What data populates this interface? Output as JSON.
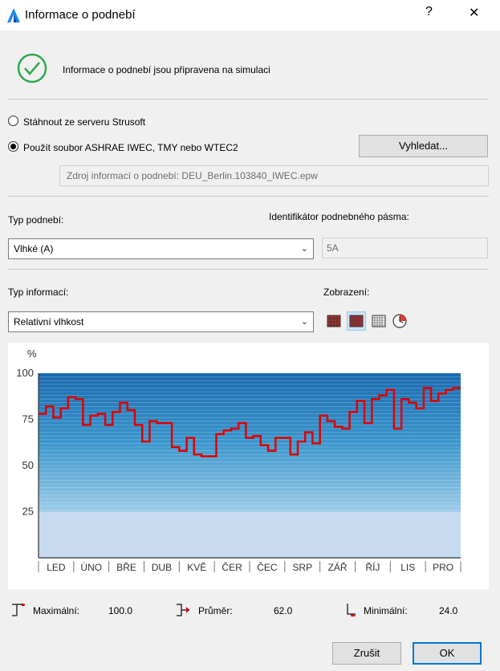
{
  "window": {
    "title": "Informace o podnebí",
    "help": "?",
    "close": "✕"
  },
  "status": {
    "message": "Informace o podnebí jsou připravena na simulaci"
  },
  "source": {
    "option_download": "Stáhnout ze serveru Strusoft",
    "option_file": "Použít soubor ASHRAE IWEC, TMY nebo WTEC2",
    "selected": "file",
    "browse_label": "Vyhledat...",
    "file_path": "Zdroj informací o podnebí: DEU_Berlin.103840_IWEC.epw"
  },
  "climate": {
    "type_label": "Typ podnebí:",
    "type_value": "Vlhké (A)",
    "zone_label": "Identifikátor podnebného pásma:",
    "zone_value": "5A"
  },
  "info": {
    "type_label": "Typ informací:",
    "type_value": "Relativní vlhkost",
    "view_label": "Zobrazení:",
    "views": [
      "monthly-grid-icon",
      "daily-grid-icon",
      "hourly-grid-icon",
      "clock-chart-icon"
    ],
    "active_view": 1
  },
  "chart_data": {
    "type": "line",
    "ylabel": "%",
    "ylim": [
      0,
      100
    ],
    "yticks": [
      100,
      75,
      50,
      25
    ],
    "categories": [
      "LED",
      "ÚNO",
      "BŘE",
      "DUB",
      "KVĚ",
      "ČER",
      "ČEC",
      "SRP",
      "ZÁŘ",
      "ŘÍJ",
      "LIS",
      "PRO"
    ],
    "weekly_average": [
      78,
      82,
      76,
      81,
      87,
      86,
      72,
      77,
      78,
      72,
      79,
      84,
      80,
      72,
      63,
      74,
      73,
      73,
      60,
      58,
      65,
      56,
      55,
      55,
      67,
      69,
      70,
      73,
      65,
      66,
      61,
      58,
      65,
      65,
      56,
      63,
      68,
      62,
      77,
      74,
      71,
      70,
      79,
      85,
      73,
      86,
      88,
      91,
      70,
      86,
      84,
      81,
      92,
      85,
      89,
      91,
      92
    ],
    "colors": {
      "line": "#e00000",
      "band_low": "#c6daf0",
      "band_mid": "#3a96cc",
      "band_top": "#1a6ab0"
    }
  },
  "stats": {
    "max_label": "Maximální:",
    "max_value": "100.0",
    "avg_label": "Průměr:",
    "avg_value": "62.0",
    "min_label": "Minimální:",
    "min_value": "24.0"
  },
  "footer": {
    "cancel_label": "Zrušit",
    "ok_label": "OK"
  }
}
